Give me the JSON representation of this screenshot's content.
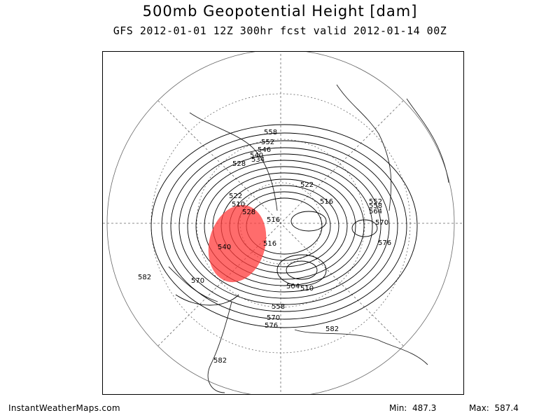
{
  "title": "500mb Geopotential Height [dam]",
  "subtitle": "GFS 2012-01-01 12Z 300hr fcst valid 2012-01-14 00Z",
  "footer": {
    "site": "InstantWeatherMaps.com",
    "min_label": "Min:",
    "min_value": "487.3",
    "max_label": "Max:",
    "max_value": "587.4"
  },
  "contour_labels": [
    "558",
    "552",
    "546",
    "540",
    "534",
    "528",
    "522",
    "516",
    "510",
    "540",
    "528",
    "522",
    "516",
    "552",
    "558",
    "564",
    "570",
    "576",
    "582",
    "570",
    "582",
    "582",
    "576",
    "570",
    "558",
    "504",
    "510",
    "516",
    "522",
    "528",
    "534",
    "540",
    "546"
  ],
  "highlight_color": "#ff3b3b"
}
